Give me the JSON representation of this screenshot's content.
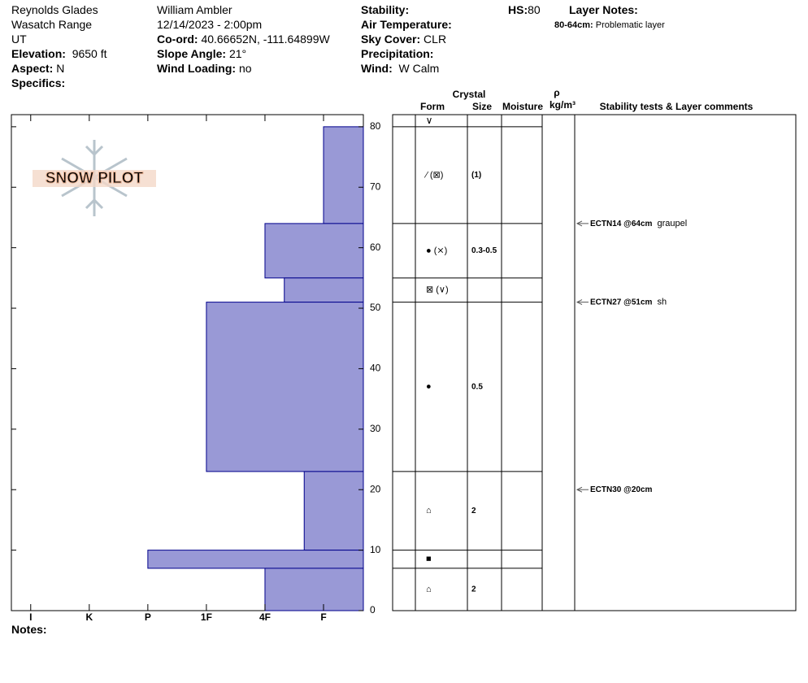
{
  "header": {
    "location": "Reynolds Glades",
    "range": "Wasatch Range",
    "state": "UT",
    "elevation_label": "Elevation:",
    "elevation": "9650 ft",
    "aspect_label": "Aspect:",
    "aspect": "N",
    "specifics_label": "Specifics:",
    "observer": "William Ambler",
    "datetime": "12/14/2023 - 2:00pm",
    "coord_label": "Co-ord:",
    "coord": "40.66652N, -111.64899W",
    "slope_label": "Slope Angle:",
    "slope": "21°",
    "wind_loading_label": "Wind Loading:",
    "wind_loading": "no",
    "stability_label": "Stability:",
    "air_temp_label": "Air Temperature:",
    "sky_label": "Sky Cover:",
    "sky": "CLR",
    "precip_label": "Precipitation:",
    "wind_label": "Wind:",
    "wind": "W Calm",
    "hs_label": "HS:",
    "hs": "80",
    "layer_notes_label": "Layer Notes:",
    "layer_note_range": "80-64cm:",
    "layer_note": "Problematic layer"
  },
  "logo": "SNOW PILOT",
  "notes_label": "Notes:",
  "chart_data": {
    "type": "profile",
    "tops": [
      80,
      64,
      55,
      51,
      23,
      10,
      7
    ],
    "bottoms": [
      64,
      55,
      51,
      23,
      10,
      7,
      0
    ],
    "values": [
      1,
      2,
      1.67,
      3,
      1.33,
      4,
      2
    ],
    "color": "#9999d6",
    "ylim": [
      0,
      82
    ],
    "yticks": [
      0,
      10,
      20,
      30,
      40,
      50,
      60,
      70,
      80
    ],
    "xlim": [
      6.33,
      0.32
    ],
    "xticks": [
      {
        "value": 6,
        "label": "I"
      },
      {
        "value": 5,
        "label": "K"
      },
      {
        "value": 4,
        "label": "P"
      },
      {
        "value": 3,
        "label": "1F"
      },
      {
        "value": 2,
        "label": "4F"
      },
      {
        "value": 1,
        "label": "F"
      }
    ]
  },
  "table": {
    "crystal_header": "Crystal",
    "form_header": "Form",
    "size_header": "Size",
    "moisture_header": "Moisture",
    "density_header": "ρ",
    "density_unit": "kg/m³",
    "comments_header": "Stability tests & Layer comments",
    "surface_form": "∨",
    "forms": [
      "⁄ (⊠)",
      "● (⨯)",
      "⊠ (∨)",
      "●",
      "⌂",
      "■",
      "⌂"
    ],
    "sizes": [
      "(1)",
      "0.3-0.5",
      null,
      "0.5",
      "2",
      null,
      "2"
    ],
    "tests": [
      {
        "label": "ECTN14 @64cm",
        "comment": "graupel",
        "depth": 64
      },
      {
        "label": "ECTN27 @51cm",
        "comment": "sh",
        "depth": 51
      },
      {
        "label": "ECTN30 @20cm",
        "depth": 20
      }
    ]
  }
}
